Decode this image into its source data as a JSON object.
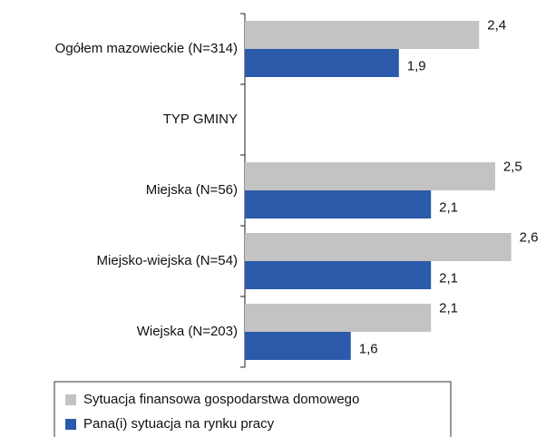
{
  "chart_data": {
    "type": "hbar",
    "categories": [
      "Ogółem mazowieckie (N=314)",
      "TYP GMINY",
      "Miejska (N=56)",
      "Miejsko-wiejska  (N=54)",
      "Wiejska  (N=203)"
    ],
    "series": [
      {
        "name": "Sytuacja finansowa gospodarstwa domowego",
        "color": "#c3c3c3",
        "values": [
          2.4,
          null,
          2.5,
          2.6,
          2.1
        ],
        "value_labels": [
          "2,4",
          null,
          "2,5",
          "2,6",
          "2,1"
        ]
      },
      {
        "name": "Pana(i) sytuacja na rynku pracy",
        "color": "#2b5aaa",
        "values": [
          1.9,
          null,
          2.1,
          2.1,
          1.6
        ],
        "value_labels": [
          "1,9",
          null,
          "2,1",
          "2,1",
          "1,6"
        ]
      }
    ],
    "xlim": [
      0.94,
      2.8
    ]
  }
}
